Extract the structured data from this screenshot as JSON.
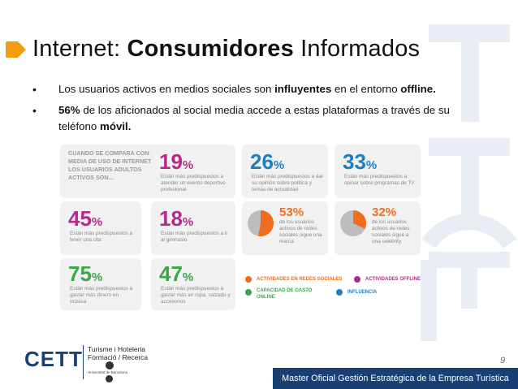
{
  "header": {
    "title_prefix": "Internet: ",
    "title_bold": "Consumidores",
    "title_suffix": " Informados",
    "accent_color": "#f39c12"
  },
  "bullets": [
    {
      "text_1": "Los usuarios activos en medios sociales son ",
      "bold_1": "influyentes",
      "text_2": " en el entorno ",
      "bold_2": "offline."
    },
    {
      "bold_1": "56%",
      "text_1": " de los aficionados al social media accede a estas plataformas a través de su teléfono ",
      "bold_2": "móvil."
    }
  ],
  "infographic": {
    "intro": "Cuando se compara con la media de uso de internet, los usuarios adultos activos son…",
    "stats": [
      {
        "value": "19",
        "unit": "%",
        "color": "#b42a8a",
        "desc": "Están más predispuestos a atender un evento deportivo profesional"
      },
      {
        "value": "26",
        "unit": "%",
        "color": "#1e7fc0",
        "desc": "Están más predispuestos a dar su opinión sobre política y temas de actualidad"
      },
      {
        "value": "33",
        "unit": "%",
        "color": "#1e7fc0",
        "desc": "Están más predispuestos a opinar sobre programas de TV"
      },
      {
        "value": "45",
        "unit": "%",
        "color": "#b42a8a",
        "desc": "Están más predispuestos a tener una cita"
      },
      {
        "value": "18",
        "unit": "%",
        "color": "#b42a8a",
        "desc": "Están más predispuestos a ir al gimnasio"
      },
      {
        "value": "53",
        "unit": "%",
        "color": "#ef6d1f",
        "desc": "de los usuarios activos de redes sociales sigue una marca",
        "fraction": 0.53
      },
      {
        "value": "32",
        "unit": "%",
        "color": "#ef6d1f",
        "desc": "de los usuarios activos de redes sociales sigue a una celebrity",
        "fraction": 0.32
      },
      {
        "value": "75",
        "unit": "%",
        "color": "#3aa84a",
        "desc": "Están más predispuestos a gastar más dinero en música"
      },
      {
        "value": "47",
        "unit": "%",
        "color": "#3aa84a",
        "desc": "Están más predispuestos a gastar más en ropa, calzado y accesorios"
      }
    ],
    "legend": [
      {
        "label": "Actividades en redes sociales",
        "color": "#ef6d1f"
      },
      {
        "label": "Actividades offline",
        "color": "#b42a8a"
      },
      {
        "label": "Capacidad de gasto online",
        "color": "#3aa84a"
      },
      {
        "label": "Influencia",
        "color": "#1e7fc0"
      }
    ]
  },
  "footer": {
    "logo_text": "CETT",
    "logo_line_1": "Turisme i Hoteleria",
    "logo_line_2": "Formació / Recerca",
    "logo_line_3": "Universitat de Barcelona",
    "page_number": "9",
    "banner": "Master Oficial Gestión Estratégica de la Empresa Turística"
  }
}
